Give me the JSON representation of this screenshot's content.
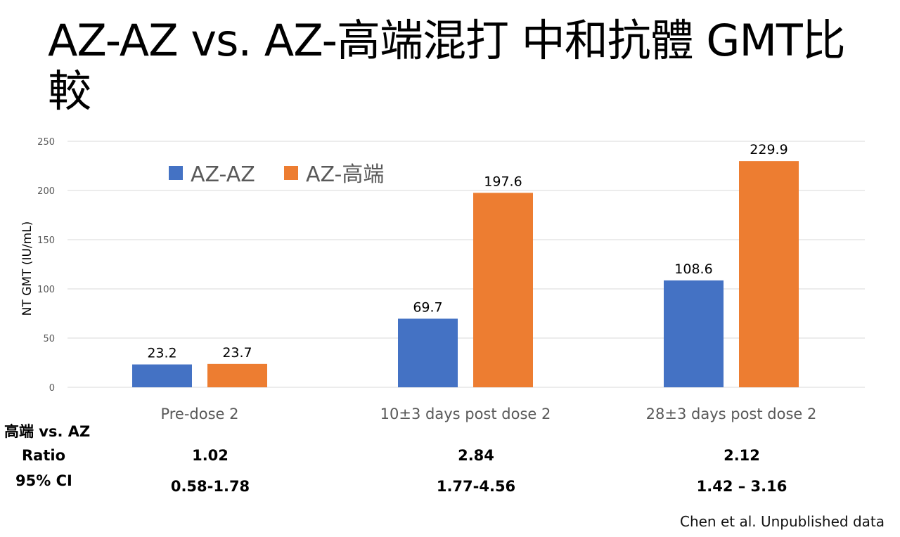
{
  "slide": {
    "title": "AZ-AZ vs. AZ-高端混打 中和抗體 GMT比較",
    "citation": "Chen et al. Unpublished data"
  },
  "colors": {
    "az_az": "#4472C4",
    "az_medigen": "#ED7D31",
    "gridline": "#D9D9D9",
    "axis_text": "#595959"
  },
  "chart_data": {
    "type": "bar",
    "title": "",
    "xlabel": "",
    "ylabel": "NT GMT (IU/mL)",
    "ylim": [
      0,
      250
    ],
    "yticks": [
      0,
      50,
      100,
      150,
      200,
      250
    ],
    "grid": true,
    "legend_position": "top-left",
    "categories": [
      "Pre-dose 2",
      "10±3 days post dose 2",
      "28±3 days post dose 2"
    ],
    "series": [
      {
        "name": "AZ-AZ",
        "values": [
          23.2,
          69.7,
          108.6
        ],
        "labels": [
          "23.2",
          "69.7",
          "108.6"
        ]
      },
      {
        "name": "AZ-高端",
        "values": [
          23.7,
          197.6,
          229.9
        ],
        "labels": [
          "23.7",
          "197.6",
          "229.9"
        ]
      }
    ]
  },
  "comparison": {
    "header": "高端 vs. AZ",
    "ratio_label": "Ratio",
    "ci_label": "95% CI",
    "ratios": [
      "1.02",
      "2.84",
      "2.12"
    ],
    "cis": [
      "0.58-1.78",
      "1.77-4.56",
      "1.42 – 3.16"
    ]
  }
}
